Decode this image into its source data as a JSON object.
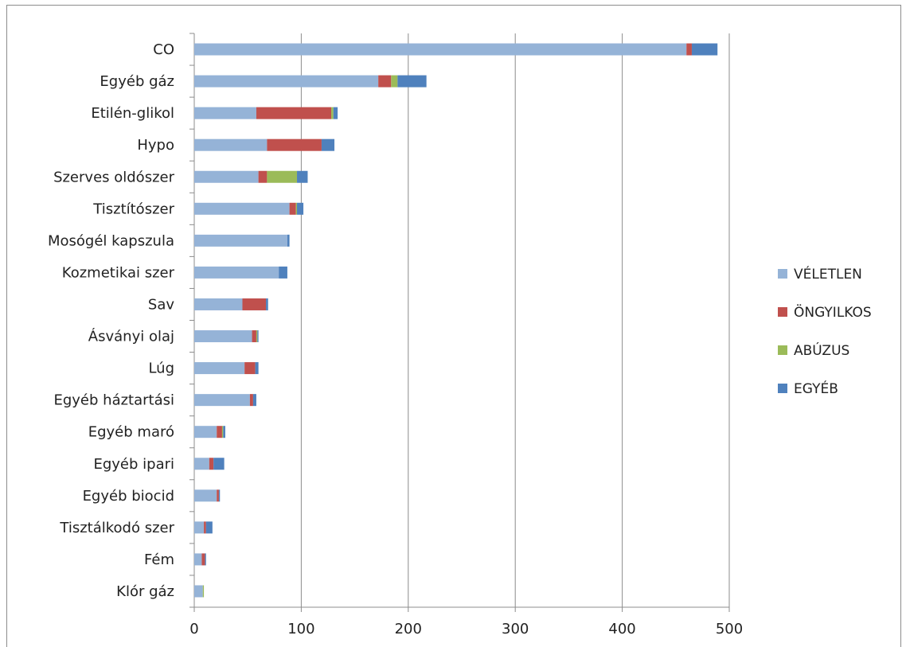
{
  "chart_data": {
    "type": "bar",
    "orientation": "horizontal",
    "stacked": true,
    "categories": [
      "CO",
      "Egyéb gáz",
      "Etilén-glikol",
      "Hypo",
      "Szerves oldószer",
      "Tisztítószer",
      "Mosógél kapszula",
      "Kozmetikai szer",
      "Sav",
      "Ásványi olaj",
      "Lúg",
      "Egyéb háztartási",
      "Egyéb maró",
      "Egyéb ipari",
      "Egyéb biocid",
      "Tisztálkodó szer",
      "Fém",
      "Klór gáz"
    ],
    "series": [
      {
        "name": "VÉLETLEN",
        "color": "#95b3d7",
        "values": [
          460,
          172,
          58,
          68,
          60,
          89,
          87,
          79,
          45,
          54,
          47,
          52,
          21,
          14,
          21,
          9,
          7,
          8
        ]
      },
      {
        "name": "ÖNGYILKOS",
        "color": "#c0504d",
        "values": [
          5,
          12,
          70,
          51,
          8,
          6,
          0,
          0,
          22,
          4,
          10,
          3,
          5,
          4,
          2,
          2,
          3,
          0
        ]
      },
      {
        "name": "ABÚZUS",
        "color": "#9bbb59",
        "values": [
          0,
          6,
          2,
          0,
          28,
          1,
          0,
          0,
          0,
          1,
          0,
          0,
          1,
          0,
          0,
          0,
          0,
          1
        ]
      },
      {
        "name": "EGYÉB",
        "color": "#4f81bd",
        "values": [
          24,
          27,
          4,
          12,
          10,
          6,
          2,
          8,
          2,
          1,
          3,
          3,
          2,
          10,
          1,
          6,
          1,
          0
        ]
      }
    ],
    "xlim": [
      0,
      500
    ],
    "xticks": [
      "0",
      "100",
      "200",
      "300",
      "400",
      "500"
    ],
    "grid": "vertical",
    "legend_position": "right"
  }
}
